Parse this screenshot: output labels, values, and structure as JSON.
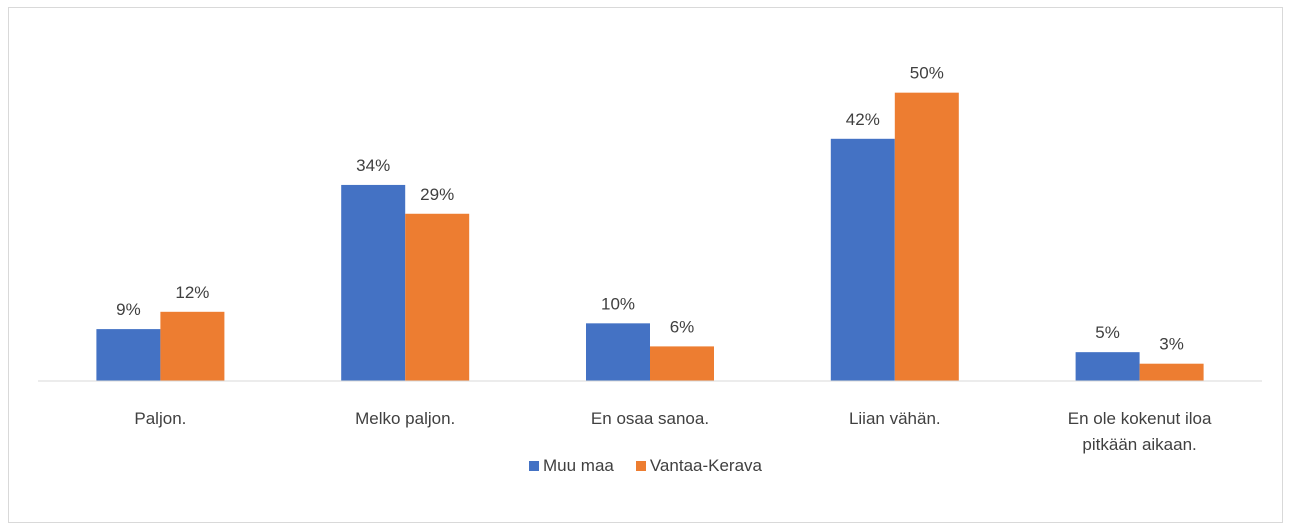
{
  "chart_data": {
    "type": "bar",
    "categories": [
      "Paljon.",
      "Melko paljon.",
      "En osaa sanoa.",
      "Liian vähän.",
      "En ole kokenut iloa pitkään aikaan."
    ],
    "series": [
      {
        "name": "Muu maa",
        "color": "#4472c4",
        "values": [
          9,
          34,
          10,
          42,
          5
        ],
        "value_labels": [
          "9%",
          "34%",
          "10%",
          "42%",
          "5%"
        ]
      },
      {
        "name": "Vantaa-Kerava",
        "color": "#ed7d31",
        "values": [
          12,
          29,
          6,
          50,
          3
        ],
        "value_labels": [
          "12%",
          "29%",
          "6%",
          "50%",
          "3%"
        ]
      }
    ],
    "ylim": [
      0,
      60
    ],
    "legend": "bottom"
  }
}
